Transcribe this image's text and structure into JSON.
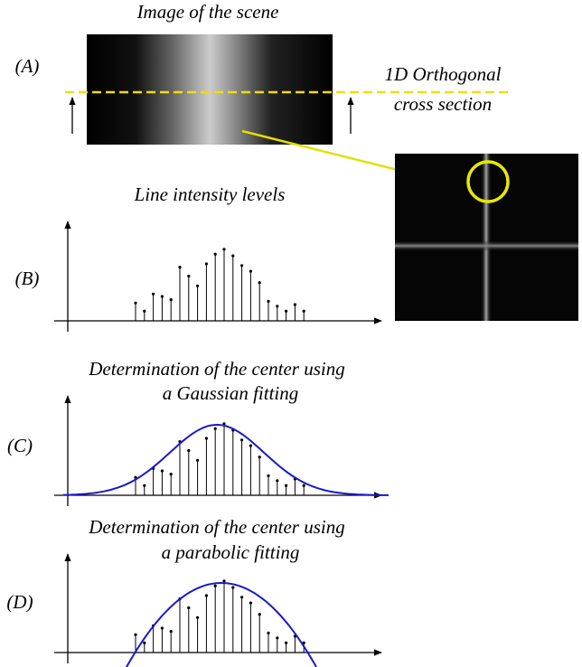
{
  "panel_a": {
    "label": "(A)",
    "title": "Image of the scene",
    "annotation": [
      "1D Orthogonal",
      "cross section"
    ]
  },
  "panel_b": {
    "label": "(B)",
    "title": "Line intensity levels"
  },
  "panel_c": {
    "label": "(C)",
    "title": [
      "Determination of the center using",
      "a Gaussian fitting"
    ]
  },
  "panel_d": {
    "label": "(D)",
    "title": [
      "Determination of the center using",
      "a parabolic fitting"
    ]
  },
  "intensity_levels": [
    22,
    12,
    33,
    30,
    26,
    66,
    55,
    43,
    70,
    82,
    88,
    80,
    68,
    61,
    47,
    24,
    18,
    12,
    20,
    12
  ]
}
